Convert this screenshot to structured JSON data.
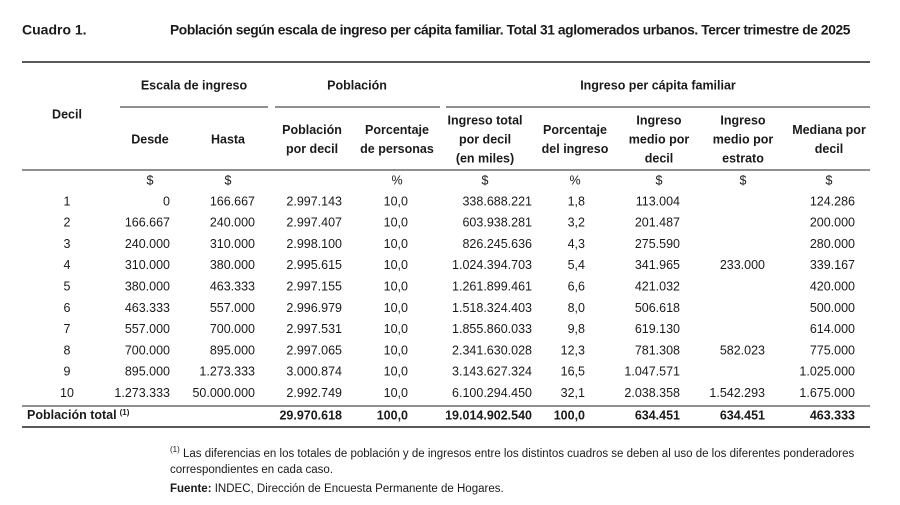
{
  "header": {
    "label": "Cuadro 1.",
    "title": "Población según escala de ingreso per cápita familiar. Total 31 aglomerados urbanos. Tercer trimestre de 2025"
  },
  "table": {
    "row_header": "Decil",
    "groups": [
      "Escala de ingreso",
      "Población",
      "Ingreso per cápita familiar"
    ],
    "columns": [
      [
        "Desde"
      ],
      [
        "Hasta"
      ],
      [
        "Población",
        "por decil"
      ],
      [
        "Porcentaje",
        "de personas"
      ],
      [
        "Ingreso total",
        "por decil",
        "(en miles)"
      ],
      [
        "Porcentaje",
        "del ingreso"
      ],
      [
        "Ingreso",
        "medio por",
        "decil"
      ],
      [
        "Ingreso",
        "medio por",
        "estrato"
      ],
      [
        "Mediana por",
        "decil"
      ]
    ],
    "units": [
      null,
      "$",
      "$",
      null,
      "%",
      "$",
      "%",
      "$",
      "$",
      "$"
    ],
    "rows": [
      [
        "1",
        "0",
        "166.667",
        "2.997.143",
        "10,0",
        "338.688.221",
        "1,8",
        "113.004",
        null,
        "124.286"
      ],
      [
        "2",
        "166.667",
        "240.000",
        "2.997.407",
        "10,0",
        "603.938.281",
        "3,2",
        "201.487",
        null,
        "200.000"
      ],
      [
        "3",
        "240.000",
        "310.000",
        "2.998.100",
        "10,0",
        "826.245.636",
        "4,3",
        "275.590",
        null,
        "280.000"
      ],
      [
        "4",
        "310.000",
        "380.000",
        "2.995.615",
        "10,0",
        "1.024.394.703",
        "5,4",
        "341.965",
        "233.000",
        "339.167"
      ],
      [
        "5",
        "380.000",
        "463.333",
        "2.997.155",
        "10,0",
        "1.261.899.461",
        "6,6",
        "421.032",
        null,
        "420.000"
      ],
      [
        "6",
        "463.333",
        "557.000",
        "2.996.979",
        "10,0",
        "1.518.324.403",
        "8,0",
        "506.618",
        null,
        "500.000"
      ],
      [
        "7",
        "557.000",
        "700.000",
        "2.997.531",
        "10,0",
        "1.855.860.033",
        "9,8",
        "619.130",
        null,
        "614.000"
      ],
      [
        "8",
        "700.000",
        "895.000",
        "2.997.065",
        "10,0",
        "2.341.630.028",
        "12,3",
        "781.308",
        "582.023",
        "775.000"
      ],
      [
        "9",
        "895.000",
        "1.273.333",
        "3.000.874",
        "10,0",
        "3.143.627.324",
        "16,5",
        "1.047.571",
        null,
        "1.025.000"
      ],
      [
        "10",
        "1.273.333",
        "50.000.000",
        "2.992.749",
        "10,0",
        "6.100.294.450",
        "32,1",
        "2.038.358",
        "1.542.293",
        "1.675.000"
      ]
    ],
    "total": {
      "label": "Población total",
      "note": "(1)",
      "cells": [
        null,
        null,
        "29.970.618",
        "100,0",
        "19.014.902.540",
        "100,0",
        "634.451",
        "634.451",
        "463.333"
      ]
    }
  },
  "footnote": {
    "mark": "(1)",
    "text": "Las diferencias en los totales de población y de ingresos entre los distintos cuadros se deben al uso de los diferentes ponderadores correspondientes en cada caso."
  },
  "source": {
    "label": "Fuente:",
    "text": "INDEC, Dirección de Encuesta Permanente de Hogares."
  }
}
